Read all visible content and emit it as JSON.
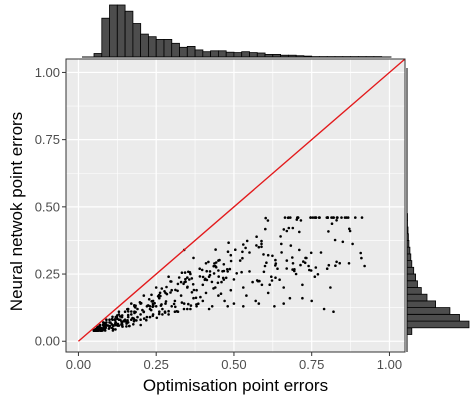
{
  "chart_data": {
    "type": "scatter",
    "title": "",
    "xlabel": "Optimisation point errors",
    "ylabel": "Neural netwok point errors",
    "xlim": [
      -0.04,
      1.05
    ],
    "ylim": [
      -0.04,
      1.05
    ],
    "x_ticks": [
      0.0,
      0.25,
      0.5,
      0.75,
      1.0
    ],
    "y_ticks": [
      0.0,
      0.25,
      0.5,
      0.75,
      1.0
    ],
    "x_tick_labels": [
      "0.00",
      "0.25",
      "0.50",
      "0.75",
      "1.00"
    ],
    "y_tick_labels": [
      "0.00",
      "0.25",
      "0.50",
      "0.75",
      "1.00"
    ],
    "grid": true,
    "background": "#ebebeb",
    "grid_color": "#ffffff",
    "point_color": "#000000",
    "reference_line": {
      "from": [
        0,
        0
      ],
      "to": [
        1.05,
        1.05
      ],
      "color": "#e31a1c"
    },
    "cluster_shape": {
      "x_range": [
        0.05,
        0.92
      ],
      "y_range": [
        0.04,
        0.46
      ],
      "ratio_mean": 0.55,
      "ratio_spread": 0.22,
      "n": 340,
      "seed": 7
    },
    "points": [
      [
        0.06,
        0.05
      ],
      [
        0.07,
        0.06
      ],
      [
        0.08,
        0.06
      ],
      [
        0.08,
        0.07
      ],
      [
        0.09,
        0.06
      ],
      [
        0.09,
        0.07
      ],
      [
        0.1,
        0.07
      ],
      [
        0.1,
        0.08
      ],
      [
        0.11,
        0.06
      ],
      [
        0.11,
        0.08
      ],
      [
        0.12,
        0.07
      ],
      [
        0.12,
        0.09
      ],
      [
        0.13,
        0.08
      ],
      [
        0.13,
        0.1
      ],
      [
        0.14,
        0.07
      ],
      [
        0.14,
        0.09
      ],
      [
        0.15,
        0.08
      ],
      [
        0.15,
        0.11
      ],
      [
        0.16,
        0.09
      ],
      [
        0.16,
        0.12
      ],
      [
        0.17,
        0.08
      ],
      [
        0.17,
        0.1
      ],
      [
        0.18,
        0.11
      ],
      [
        0.18,
        0.13
      ],
      [
        0.19,
        0.09
      ],
      [
        0.19,
        0.12
      ],
      [
        0.2,
        0.1
      ],
      [
        0.2,
        0.14
      ],
      [
        0.21,
        0.11
      ],
      [
        0.22,
        0.13
      ],
      [
        0.22,
        0.09
      ],
      [
        0.23,
        0.12
      ],
      [
        0.24,
        0.15
      ],
      [
        0.24,
        0.1
      ],
      [
        0.25,
        0.13
      ],
      [
        0.26,
        0.11
      ],
      [
        0.26,
        0.16
      ],
      [
        0.27,
        0.12
      ],
      [
        0.28,
        0.18
      ],
      [
        0.28,
        0.14
      ],
      [
        0.29,
        0.1
      ],
      [
        0.3,
        0.13
      ],
      [
        0.3,
        0.19
      ],
      [
        0.31,
        0.15
      ],
      [
        0.32,
        0.11
      ],
      [
        0.33,
        0.22
      ],
      [
        0.33,
        0.17
      ],
      [
        0.34,
        0.14
      ],
      [
        0.35,
        0.2
      ],
      [
        0.35,
        0.12
      ],
      [
        0.36,
        0.25
      ],
      [
        0.37,
        0.16
      ],
      [
        0.38,
        0.19
      ],
      [
        0.38,
        0.13
      ],
      [
        0.39,
        0.27
      ],
      [
        0.4,
        0.21
      ],
      [
        0.4,
        0.15
      ],
      [
        0.41,
        0.18
      ],
      [
        0.42,
        0.24
      ],
      [
        0.43,
        0.13
      ],
      [
        0.44,
        0.2
      ],
      [
        0.44,
        0.28
      ],
      [
        0.45,
        0.17
      ],
      [
        0.46,
        0.22
      ],
      [
        0.47,
        0.15
      ],
      [
        0.48,
        0.26
      ],
      [
        0.49,
        0.19
      ],
      [
        0.5,
        0.23
      ],
      [
        0.5,
        0.14
      ],
      [
        0.52,
        0.3
      ],
      [
        0.53,
        0.2
      ],
      [
        0.54,
        0.17
      ],
      [
        0.55,
        0.26
      ],
      [
        0.56,
        0.22
      ],
      [
        0.57,
        0.15
      ],
      [
        0.58,
        0.35
      ],
      [
        0.59,
        0.21
      ],
      [
        0.6,
        0.28
      ],
      [
        0.61,
        0.18
      ],
      [
        0.62,
        0.24
      ],
      [
        0.63,
        0.13
      ],
      [
        0.64,
        0.27
      ],
      [
        0.65,
        0.39
      ],
      [
        0.66,
        0.2
      ],
      [
        0.67,
        0.3
      ],
      [
        0.68,
        0.16
      ],
      [
        0.7,
        0.25
      ],
      [
        0.71,
        0.34
      ],
      [
        0.72,
        0.21
      ],
      [
        0.74,
        0.28
      ],
      [
        0.75,
        0.15
      ],
      [
        0.76,
        0.24
      ],
      [
        0.78,
        0.33
      ],
      [
        0.8,
        0.27
      ],
      [
        0.81,
        0.2
      ],
      [
        0.82,
        0.11
      ],
      [
        0.83,
        0.45
      ],
      [
        0.85,
        0.37
      ],
      [
        0.87,
        0.29
      ],
      [
        0.92,
        0.28
      ],
      [
        0.34,
        0.34
      ],
      [
        0.29,
        0.24
      ],
      [
        0.25,
        0.2
      ],
      [
        0.21,
        0.17
      ],
      [
        0.17,
        0.14
      ],
      [
        0.13,
        0.11
      ],
      [
        0.09,
        0.08
      ],
      [
        0.07,
        0.05
      ],
      [
        0.06,
        0.04
      ],
      [
        0.05,
        0.04
      ],
      [
        0.1,
        0.05
      ],
      [
        0.12,
        0.06
      ],
      [
        0.14,
        0.06
      ],
      [
        0.16,
        0.07
      ],
      [
        0.18,
        0.08
      ],
      [
        0.2,
        0.08
      ],
      [
        0.23,
        0.09
      ],
      [
        0.27,
        0.1
      ],
      [
        0.31,
        0.11
      ],
      [
        0.36,
        0.12
      ],
      [
        0.42,
        0.12
      ],
      [
        0.48,
        0.13
      ],
      [
        0.53,
        0.13
      ],
      [
        0.58,
        0.14
      ],
      [
        0.66,
        0.14
      ],
      [
        0.72,
        0.16
      ],
      [
        0.79,
        0.12
      ],
      [
        0.53,
        0.36
      ],
      [
        0.49,
        0.32
      ],
      [
        0.45,
        0.3
      ],
      [
        0.41,
        0.29
      ],
      [
        0.37,
        0.31
      ],
      [
        0.55,
        0.33
      ],
      [
        0.61,
        0.32
      ],
      [
        0.69,
        0.29
      ],
      [
        0.73,
        0.31
      ]
    ],
    "top_histogram": {
      "bin_width": 0.025,
      "bins_start": 0.05,
      "counts": [
        8,
        88,
        118,
        118,
        104,
        76,
        52,
        46,
        40,
        40,
        31,
        22,
        24,
        16,
        12,
        14,
        14,
        11,
        10,
        12,
        10,
        9,
        6,
        6,
        4,
        4,
        3,
        2,
        1,
        1,
        1,
        1,
        1,
        1,
        1,
        1,
        1
      ],
      "fill": "#4d4d4d"
    },
    "right_histogram": {
      "bin_width": 0.025,
      "bins_start": 0.025,
      "counts": [
        10,
        130,
        110,
        90,
        60,
        42,
        30,
        22,
        18,
        14,
        10,
        8,
        6,
        4,
        3,
        2,
        1,
        1
      ],
      "fill": "#4d4d4d"
    }
  }
}
